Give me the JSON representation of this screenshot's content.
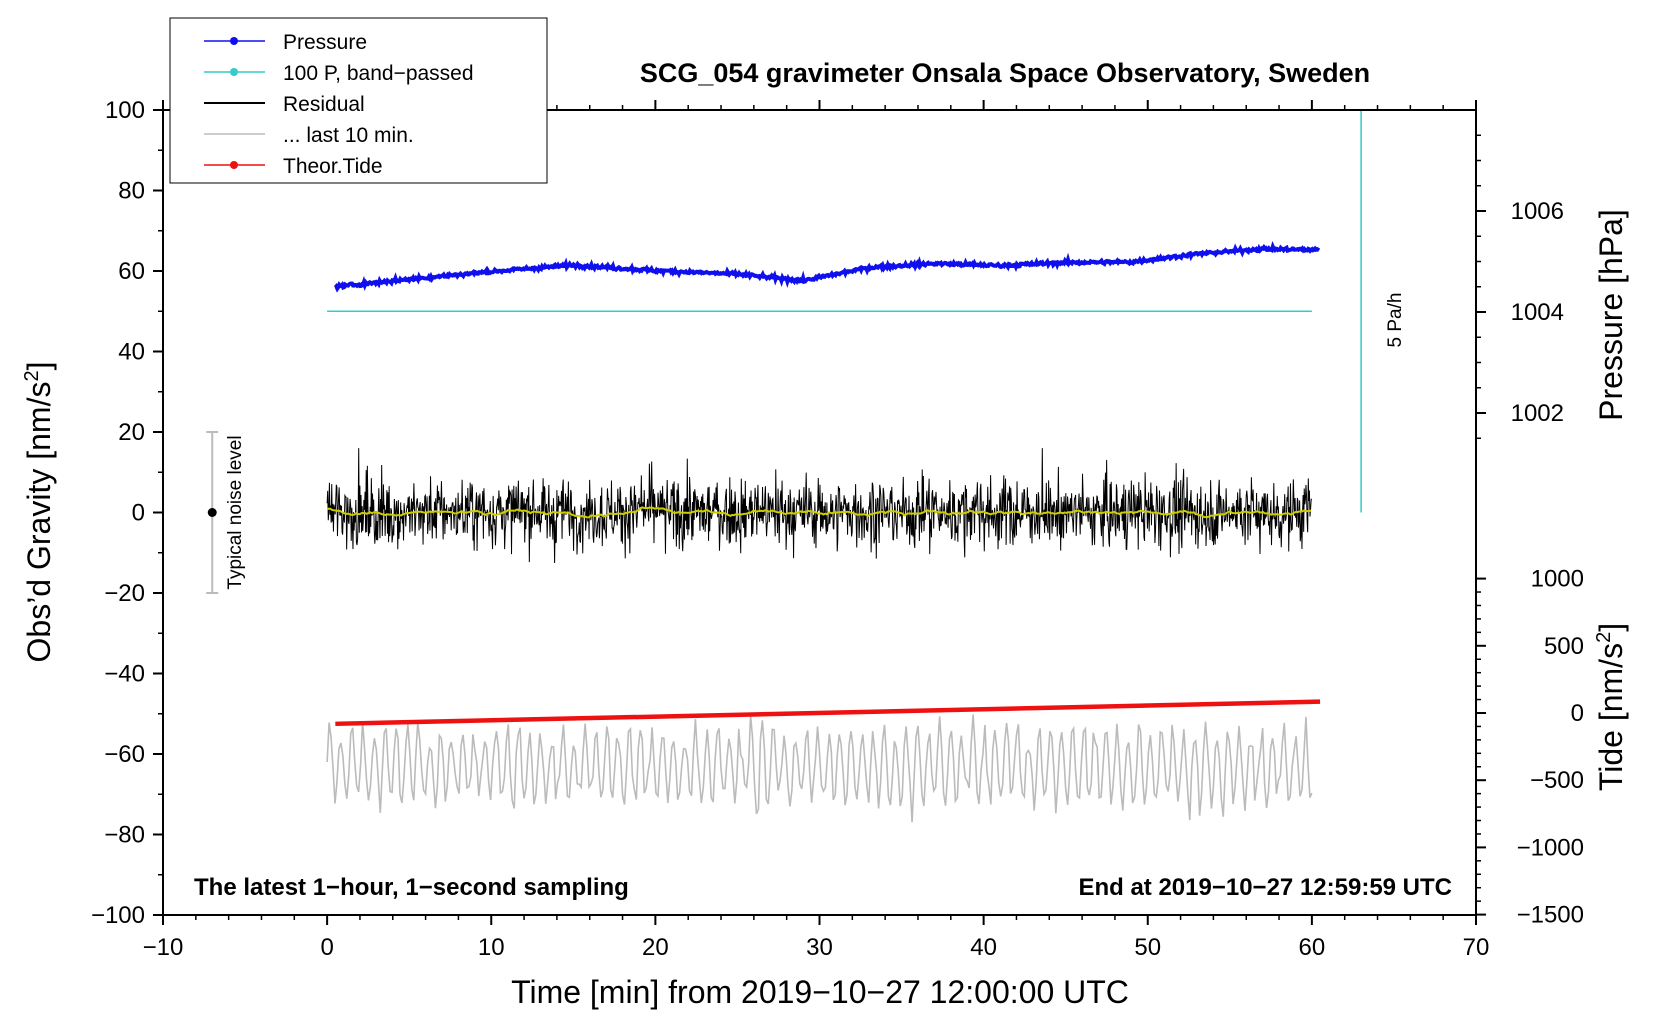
{
  "chart_data": {
    "type": "line",
    "title": "SCG_054 gravimeter Onsala Space Observatory, Sweden",
    "xlabel": "Time [min] from 2019−10−27 12:00:00 UTC",
    "ylabel_left": "Obs’d Gravity [nm/s",
    "ylabel_left_sup": "2",
    "ylabel_left_tail": "]",
    "ylabel_right_pressure": "Pressure [hPa]",
    "ylabel_right_tide": "Tide [nm/s",
    "ylabel_right_tide_sup": "2",
    "ylabel_right_tide_tail": "]",
    "xlim": [
      -10,
      70
    ],
    "ylim_left": [
      -100,
      100
    ],
    "x_ticks": [
      "−10",
      "0",
      "10",
      "20",
      "30",
      "40",
      "50",
      "60",
      "70"
    ],
    "y_ticks_left": [
      "100",
      "80",
      "60",
      "40",
      "20",
      "0",
      "−20",
      "−40",
      "−60",
      "−80",
      "−100"
    ],
    "y_ticks_pressure": [
      "1006",
      "1004",
      "1002"
    ],
    "y_ticks_tide": [
      "1000",
      "500",
      "0",
      "−500",
      "−1000",
      "−1500"
    ],
    "legend": [
      {
        "label": "Pressure",
        "color": "#1010ee",
        "marker": true
      },
      {
        "label": "100 P, band−passed",
        "color": "#33cccc",
        "marker": true
      },
      {
        "label": "Residual",
        "color": "#000000",
        "marker": false
      },
      {
        "label": "... last 10 min.",
        "color": "#bbbbbb",
        "marker": false
      },
      {
        "label": "Theor.Tide",
        "color": "#ee1111",
        "marker": true
      }
    ],
    "series": [
      {
        "name": "Pressure",
        "color": "#1010ee",
        "unit": "hPa",
        "x": [
          0.5,
          5,
          10,
          15,
          20,
          25,
          29,
          33,
          37,
          41,
          45,
          49,
          53,
          57,
          60.5
        ],
        "values": [
          1004.5,
          1004.65,
          1004.8,
          1004.93,
          1004.82,
          1004.75,
          1004.62,
          1004.88,
          1004.96,
          1004.92,
          1004.98,
          1004.99,
          1005.15,
          1005.25,
          1005.23
        ]
      },
      {
        "name": "100 P, band-passed",
        "color": "#33cccc",
        "unit": "nm/s2",
        "x": [
          0,
          60
        ],
        "values": [
          50,
          50
        ]
      },
      {
        "name": "Residual",
        "color": "#000000",
        "unit": "nm/s2",
        "x_range": [
          0,
          60
        ],
        "center": 0,
        "noise_amplitude": 8,
        "peak_range": [
          -18,
          16
        ]
      },
      {
        "name": "Residual smoothed",
        "color": "#cccc00",
        "unit": "nm/s2",
        "x_range": [
          0,
          60
        ],
        "center": 0
      },
      {
        "name": "... last 10 min.",
        "color": "#bbbbbb",
        "unit": "nm/s2",
        "x_range": [
          0,
          60
        ],
        "center": -63,
        "peak_range": [
          -80,
          -46
        ]
      },
      {
        "name": "Theor.Tide",
        "color": "#ee1111",
        "unit": "nm/s2",
        "x": [
          0.5,
          60.5
        ],
        "values": [
          -52.5,
          -47
        ]
      }
    ],
    "noise_bar": {
      "label": "Typical noise level",
      "x": -7,
      "center": 0,
      "low": -20,
      "high": 20
    },
    "scale_bar": {
      "label": "5 Pa/h",
      "x": 63,
      "y_from": 0,
      "y_to": 100
    },
    "annotation_left": "The latest 1−hour, 1−second sampling",
    "annotation_right": "End at 2019−10−27 12:59:59 UTC"
  }
}
